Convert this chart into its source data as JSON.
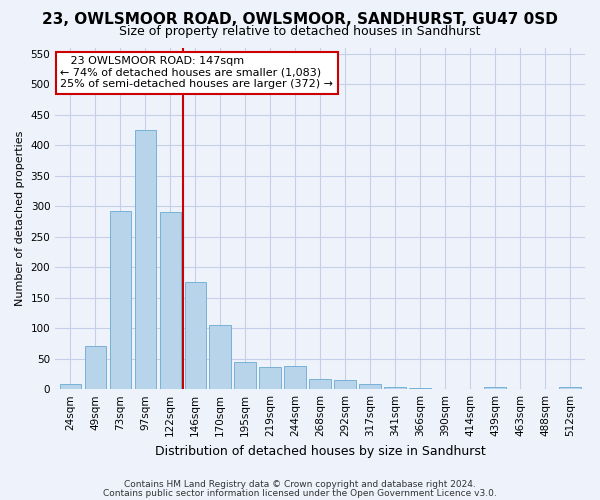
{
  "title1": "23, OWLSMOOR ROAD, OWLSMOOR, SANDHURST, GU47 0SD",
  "title2": "Size of property relative to detached houses in Sandhurst",
  "xlabel": "Distribution of detached houses by size in Sandhurst",
  "ylabel": "Number of detached properties",
  "footer1": "Contains HM Land Registry data © Crown copyright and database right 2024.",
  "footer2": "Contains public sector information licensed under the Open Government Licence v3.0.",
  "bar_color": "#b8d4ea",
  "bar_edge_color": "#6aaad4",
  "annotation_line1": "   23 OWLSMOOR ROAD: 147sqm",
  "annotation_line2": "← 74% of detached houses are smaller (1,083)",
  "annotation_line3": "25% of semi-detached houses are larger (372) →",
  "annotation_box_color": "#ffffff",
  "annotation_box_edge_color": "#cc0000",
  "vline_color": "#cc0000",
  "vline_x_index": 4.5,
  "categories": [
    "24sqm",
    "49sqm",
    "73sqm",
    "97sqm",
    "122sqm",
    "146sqm",
    "170sqm",
    "195sqm",
    "219sqm",
    "244sqm",
    "268sqm",
    "292sqm",
    "317sqm",
    "341sqm",
    "366sqm",
    "390sqm",
    "414sqm",
    "439sqm",
    "463sqm",
    "488sqm",
    "512sqm"
  ],
  "values": [
    8,
    70,
    292,
    425,
    290,
    175,
    105,
    44,
    37,
    38,
    16,
    15,
    8,
    4,
    2,
    0,
    0,
    4,
    0,
    0,
    3
  ],
  "ylim": [
    0,
    560
  ],
  "yticks": [
    0,
    50,
    100,
    150,
    200,
    250,
    300,
    350,
    400,
    450,
    500,
    550
  ],
  "background_color": "#eef2fb",
  "grid_color": "#c5cfe8",
  "title1_fontsize": 11,
  "title2_fontsize": 9,
  "ylabel_fontsize": 8,
  "xlabel_fontsize": 9,
  "tick_fontsize": 7.5,
  "footer_fontsize": 6.5
}
